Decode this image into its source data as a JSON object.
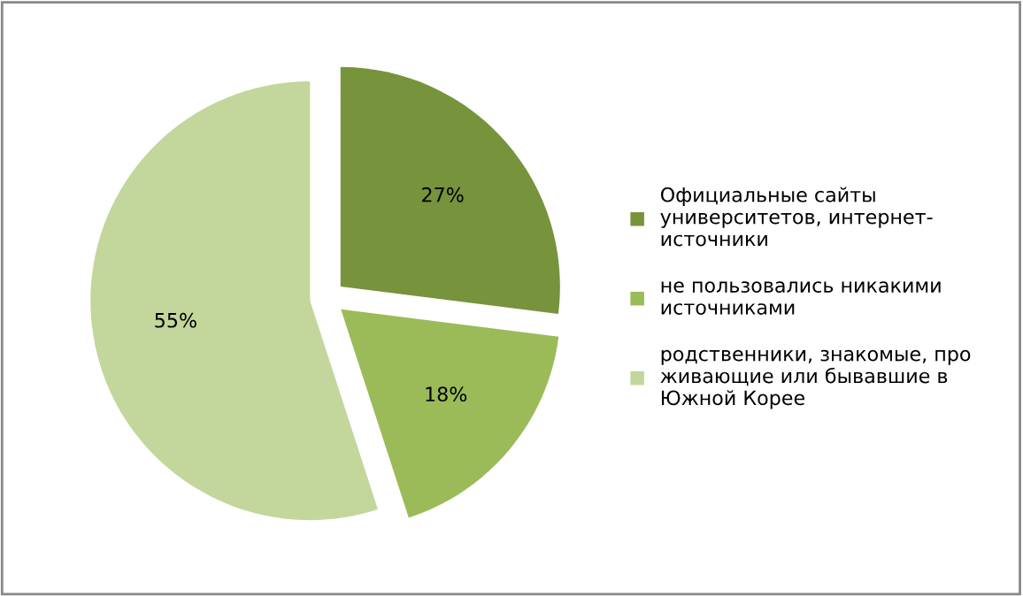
{
  "chart_data": {
    "type": "pie",
    "categories": [
      "Официальные сайты\nуниверситетов, интернет-\nисточники",
      "не пользовались никакими\nисточниками",
      "родственники, знакомые, про\nживающие или бывавшие в\nЮжной Корее"
    ],
    "values": [
      27,
      18,
      55
    ],
    "colors": [
      "#77933c",
      "#9bbb59",
      "#c3d69b"
    ],
    "value_labels": [
      "27%",
      "18%",
      "55%"
    ],
    "legend": "right"
  }
}
